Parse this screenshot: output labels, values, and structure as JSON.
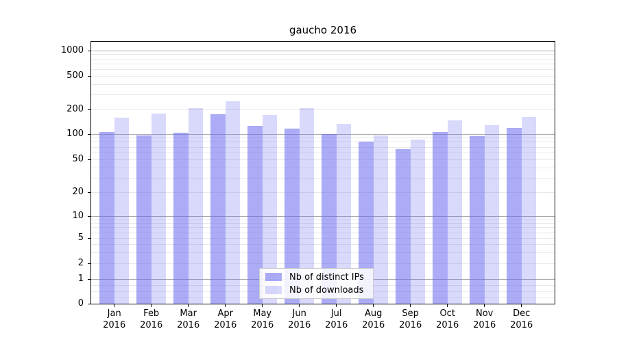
{
  "title": "gaucho 2016",
  "chart_data": {
    "type": "bar",
    "title": "gaucho 2016",
    "x_months": [
      "Jan",
      "Feb",
      "Mar",
      "Apr",
      "May",
      "Jun",
      "Jul",
      "Aug",
      "Sep",
      "Oct",
      "Nov",
      "Dec"
    ],
    "x_year": "2016",
    "series": [
      {
        "name": "Nb of distinct IPs",
        "color": "rgba(102,102,238,0.55)",
        "values": [
          105,
          95,
          102,
          173,
          125,
          115,
          99,
          81,
          66,
          104,
          94,
          117
        ]
      },
      {
        "name": "Nb of downloads",
        "color": "rgba(102,102,238,0.25)",
        "values": [
          158,
          179,
          208,
          252,
          172,
          206,
          132,
          96,
          85,
          145,
          128,
          160
        ]
      }
    ],
    "y_scale": "symlog",
    "y_ticks": [
      1000,
      500,
      200,
      100,
      50,
      20,
      10,
      5,
      2,
      1,
      0
    ],
    "ylim": [
      0,
      1258
    ],
    "grid": true,
    "legend_position": "lower center"
  }
}
